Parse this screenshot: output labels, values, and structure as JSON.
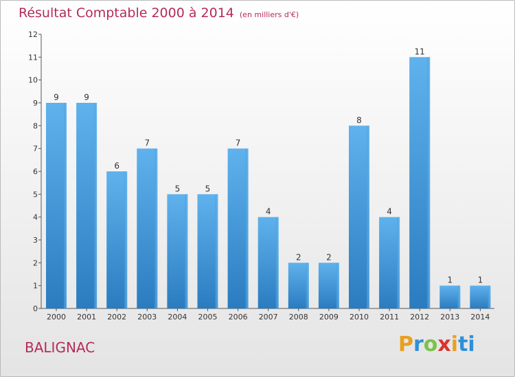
{
  "header": {
    "title": "Résultat Comptable 2000 à 2014",
    "subtitle": "(en milliers d'€)"
  },
  "footer": {
    "commune": "BALIGNAC",
    "brand_letters": [
      "P",
      "r",
      "o",
      "x",
      "i",
      "ti"
    ]
  },
  "colors": {
    "title": "#b52a5a",
    "bar_light": "#5aaeea",
    "bar_dark": "#2a7fc4"
  },
  "chart_data": {
    "type": "bar",
    "title": "Résultat Comptable 2000 à 2014",
    "subtitle": "(en milliers d'€)",
    "xlabel": "",
    "ylabel": "",
    "categories": [
      "2000",
      "2001",
      "2002",
      "2003",
      "2004",
      "2005",
      "2006",
      "2007",
      "2008",
      "2009",
      "2010",
      "2011",
      "2012",
      "2013",
      "2014"
    ],
    "values": [
      9,
      9,
      6,
      7,
      5,
      5,
      7,
      4,
      2,
      2,
      8,
      4,
      11,
      1,
      1
    ],
    "ylim": [
      0,
      12
    ],
    "yticks": [
      0,
      1,
      2,
      3,
      4,
      5,
      6,
      7,
      8,
      9,
      10,
      11,
      12
    ],
    "grid": false,
    "legend": "none"
  }
}
